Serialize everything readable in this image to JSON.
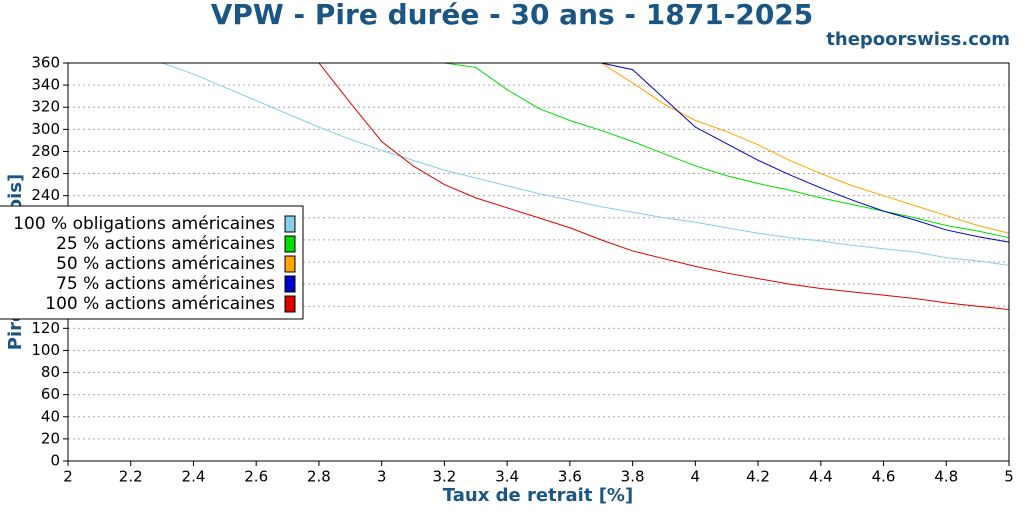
{
  "chart_data": {
    "type": "line",
    "title": "VPW - Pire durée - 30 ans - 1871-2025",
    "subtitle": "thepoorswiss.com",
    "x_label": "Taux de retrait [%]",
    "y_label": "Pire durée [mois]",
    "x": [
      2,
      2.1,
      2.2,
      2.3,
      2.4,
      2.5,
      2.6,
      2.7,
      2.8,
      2.9,
      3,
      3.1,
      3.2,
      3.3,
      3.4,
      3.5,
      3.6,
      3.7,
      3.8,
      3.9,
      4,
      4.1,
      4.2,
      4.3,
      4.4,
      4.5,
      4.6,
      4.7,
      4.8,
      4.9,
      5
    ],
    "xlim": [
      2,
      5
    ],
    "xticks": [
      2,
      2.2,
      2.4,
      2.6,
      2.8,
      3,
      3.2,
      3.4,
      3.6,
      3.8,
      4,
      4.2,
      4.4,
      4.6,
      4.8,
      5
    ],
    "ylim": [
      0,
      360
    ],
    "yticks": [
      0,
      20,
      40,
      60,
      80,
      100,
      120,
      140,
      160,
      180,
      200,
      220,
      240,
      260,
      280,
      300,
      320,
      340,
      360
    ],
    "grid": true,
    "legend": "center left",
    "series": [
      {
        "name": "100 % obligations américaines",
        "color": "#87ceeb",
        "values": [
          360,
          360,
          360,
          360,
          350,
          338,
          326,
          314,
          302,
          291,
          281,
          272,
          263,
          256,
          249,
          242,
          236,
          230,
          225,
          220,
          216,
          211,
          206,
          202,
          199,
          195,
          192,
          189,
          184,
          181,
          177
        ]
      },
      {
        "name": "25 % actions américaines",
        "color": "#00dd00",
        "values": [
          360,
          360,
          360,
          360,
          360,
          360,
          360,
          360,
          360,
          360,
          360,
          360,
          360,
          356,
          336,
          319,
          308,
          299,
          289,
          278,
          267,
          258,
          251,
          245,
          238,
          232,
          226,
          220,
          213,
          208,
          202
        ]
      },
      {
        "name": "50 % actions américaines",
        "color": "#ffa500",
        "values": [
          360,
          360,
          360,
          360,
          360,
          360,
          360,
          360,
          360,
          360,
          360,
          360,
          360,
          360,
          360,
          360,
          360,
          360,
          342,
          323,
          308,
          298,
          286,
          272,
          260,
          249,
          240,
          231,
          222,
          213,
          206
        ]
      },
      {
        "name": "75 % actions américaines",
        "color": "#0000cc",
        "values": [
          360,
          360,
          360,
          360,
          360,
          360,
          360,
          360,
          360,
          360,
          360,
          360,
          360,
          360,
          360,
          360,
          360,
          360,
          354,
          328,
          302,
          287,
          272,
          259,
          247,
          236,
          226,
          218,
          209,
          203,
          198
        ]
      },
      {
        "name": "100 % actions américaines",
        "color": "#dd0000",
        "values": [
          360,
          360,
          360,
          360,
          360,
          360,
          360,
          360,
          360,
          324,
          289,
          267,
          250,
          238,
          229,
          220,
          211,
          200,
          190,
          183,
          176,
          170,
          165,
          160,
          156,
          153,
          150,
          147,
          143,
          140,
          137
        ]
      }
    ]
  }
}
